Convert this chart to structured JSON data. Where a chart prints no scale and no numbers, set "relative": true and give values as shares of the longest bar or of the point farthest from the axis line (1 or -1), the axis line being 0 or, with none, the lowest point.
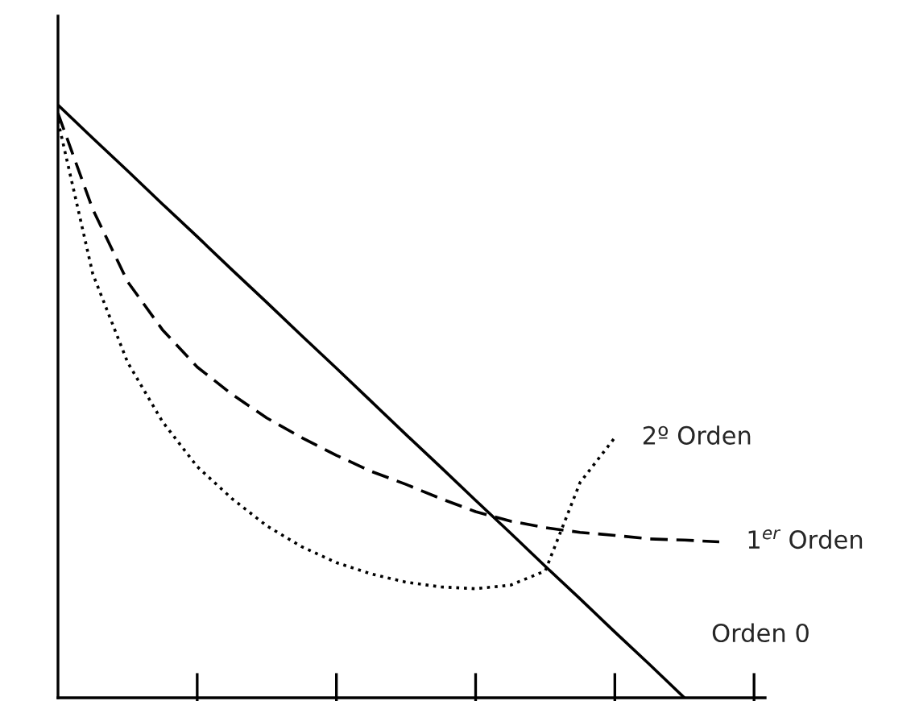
{
  "chart_data": {
    "type": "line",
    "relative": true,
    "categories": [
      null,
      null,
      null,
      null,
      null,
      null,
      null,
      null,
      null,
      null,
      null,
      null,
      null,
      null,
      null,
      null,
      null,
      null,
      null,
      null,
      null
    ],
    "series": [
      {
        "name": "2º Orden",
        "color": "#000000",
        "line_style": "dotted",
        "values": [
          0.973,
          0.715,
          0.566,
          0.466,
          0.39,
          0.336,
          0.29,
          0.255,
          0.228,
          0.209,
          0.195,
          0.187,
          0.184,
          0.19,
          0.214,
          0.363,
          0.439,
          null,
          null,
          null,
          null
        ]
      },
      {
        "name": "1$^{er}$ Orden",
        "color": "#000000",
        "line_style": "dashed",
        "values": [
          0.986,
          0.824,
          0.702,
          0.621,
          0.558,
          0.512,
          0.472,
          0.439,
          0.409,
          0.382,
          0.36,
          0.336,
          0.314,
          0.298,
          0.287,
          0.279,
          0.274,
          0.268,
          0.266,
          0.263,
          null
        ]
      },
      {
        "name": "Orden 0",
        "color": "#000000",
        "line_style": "solid",
        "values": [
          1,
          0.944,
          0.889,
          0.833,
          0.778,
          0.722,
          0.667,
          0.611,
          0.556,
          0.5,
          0.444,
          0.389,
          0.333,
          0.278,
          0.222,
          0.167,
          0.111,
          0.056,
          0,
          null,
          null
        ]
      }
    ],
    "grid": false,
    "legend": false,
    "marker": "none"
  }
}
